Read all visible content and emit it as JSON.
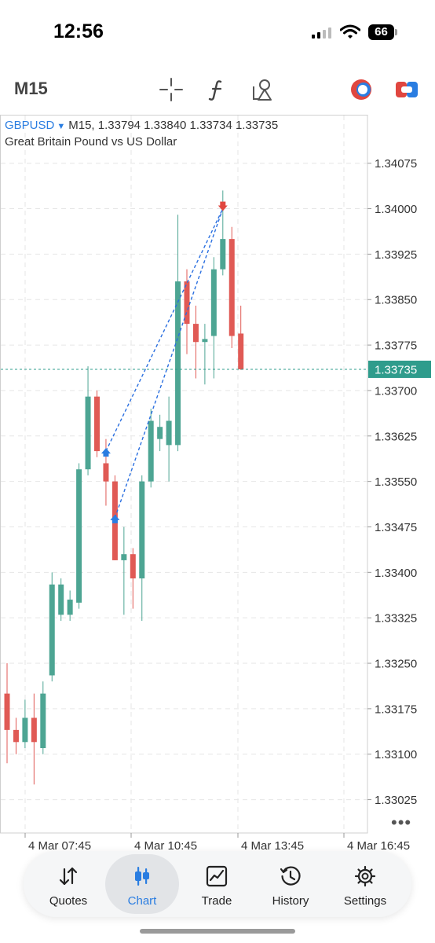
{
  "status_bar": {
    "time": "12:56",
    "battery": "66",
    "icons": [
      "signal-icon",
      "wifi-icon",
      "battery-icon"
    ]
  },
  "toolbar": {
    "timeframe": "M15",
    "icons": [
      "crosshair-icon",
      "indicator-icon",
      "objects-icon",
      "one-click-trading-icon",
      "depth-of-market-icon"
    ]
  },
  "chart": {
    "symbol": "GBPUSD",
    "timeframe": "M15,",
    "ohlc": "1.33794 1.33840 1.33734 1.33735",
    "description": "Great Britain Pound vs US Dollar",
    "current_price": "1.33735",
    "y_ticks": [
      "1.34075",
      "1.34000",
      "1.33925",
      "1.33850",
      "1.33775",
      "1.33700",
      "1.33625",
      "1.33550",
      "1.33475",
      "1.33400",
      "1.33325",
      "1.33250",
      "1.33175",
      "1.33100",
      "1.33025"
    ],
    "x_ticks": [
      "4 Mar 07:45",
      "4 Mar 10:45",
      "4 Mar 13:45",
      "4 Mar 16:45"
    ],
    "colors": {
      "bull": "#4da593",
      "bear": "#e05a55",
      "grid": "#e6e6e6",
      "price_line": "#2f9c8c",
      "buy_arrow": "#2a7de1",
      "sell_arrow": "#e0463f",
      "trade_line": "#2a6fe0"
    }
  },
  "chart_data": {
    "type": "candlestick",
    "symbol": "GBPUSD",
    "timeframe": "M15",
    "ylim": [
      1.3297,
      1.34155
    ],
    "y_ticks": [
      1.34075,
      1.34,
      1.33925,
      1.3385,
      1.33775,
      1.337,
      1.33625,
      1.3355,
      1.33475,
      1.334,
      1.33325,
      1.3325,
      1.33175,
      1.331,
      1.33025
    ],
    "x_ticks": [
      "4 Mar 07:45",
      "4 Mar 10:45",
      "4 Mar 13:45",
      "4 Mar 16:45"
    ],
    "last_price": 1.33735,
    "candles": [
      {
        "o": 1.332,
        "h": 1.3325,
        "l": 1.33085,
        "c": 1.3314
      },
      {
        "o": 1.3314,
        "h": 1.3316,
        "l": 1.331,
        "c": 1.3312
      },
      {
        "o": 1.3312,
        "h": 1.3319,
        "l": 1.3311,
        "c": 1.3316
      },
      {
        "o": 1.3316,
        "h": 1.332,
        "l": 1.3305,
        "c": 1.3312
      },
      {
        "o": 1.3311,
        "h": 1.3322,
        "l": 1.331,
        "c": 1.332
      },
      {
        "o": 1.3323,
        "h": 1.334,
        "l": 1.3322,
        "c": 1.3338
      },
      {
        "o": 1.3333,
        "h": 1.3339,
        "l": 1.3332,
        "c": 1.3338
      },
      {
        "o": 1.3333,
        "h": 1.3337,
        "l": 1.3332,
        "c": 1.33355
      },
      {
        "o": 1.3335,
        "h": 1.3358,
        "l": 1.3334,
        "c": 1.3357
      },
      {
        "o": 1.3357,
        "h": 1.3374,
        "l": 1.3356,
        "c": 1.3369
      },
      {
        "o": 1.3369,
        "h": 1.337,
        "l": 1.3359,
        "c": 1.336
      },
      {
        "o": 1.3358,
        "h": 1.3362,
        "l": 1.3351,
        "c": 1.3355
      },
      {
        "o": 1.3355,
        "h": 1.3356,
        "l": 1.3342,
        "c": 1.3342
      },
      {
        "o": 1.3342,
        "h": 1.33475,
        "l": 1.3333,
        "c": 1.3343
      },
      {
        "o": 1.3343,
        "h": 1.3344,
        "l": 1.3334,
        "c": 1.3339
      },
      {
        "o": 1.3339,
        "h": 1.3356,
        "l": 1.3332,
        "c": 1.3355
      },
      {
        "o": 1.3355,
        "h": 1.3367,
        "l": 1.3354,
        "c": 1.3365
      },
      {
        "o": 1.3362,
        "h": 1.3366,
        "l": 1.336,
        "c": 1.3364
      },
      {
        "o": 1.3361,
        "h": 1.3369,
        "l": 1.3355,
        "c": 1.3365
      },
      {
        "o": 1.3361,
        "h": 1.3399,
        "l": 1.336,
        "c": 1.3388
      },
      {
        "o": 1.3388,
        "h": 1.339,
        "l": 1.3376,
        "c": 1.3381
      },
      {
        "o": 1.3381,
        "h": 1.3384,
        "l": 1.3372,
        "c": 1.3378
      },
      {
        "o": 1.3378,
        "h": 1.3381,
        "l": 1.3371,
        "c": 1.33785
      },
      {
        "o": 1.3379,
        "h": 1.3392,
        "l": 1.3372,
        "c": 1.339
      },
      {
        "o": 1.339,
        "h": 1.3403,
        "l": 1.3389,
        "c": 1.3395
      },
      {
        "o": 1.3395,
        "h": 1.3397,
        "l": 1.3377,
        "c": 1.3379
      },
      {
        "o": 1.33794,
        "h": 1.3384,
        "l": 1.33734,
        "c": 1.33735
      }
    ],
    "trades": [
      {
        "type": "buy",
        "candle": 11,
        "price": 1.336,
        "close_candle": 24,
        "close_price": 1.34
      },
      {
        "type": "buy",
        "candle": 12,
        "price": 1.3349,
        "close_candle": 24,
        "close_price": 1.34
      }
    ]
  },
  "bottom_nav": {
    "items": [
      {
        "label": "Quotes",
        "icon": "quotes-icon",
        "active": false
      },
      {
        "label": "Chart",
        "icon": "chart-icon",
        "active": true
      },
      {
        "label": "Trade",
        "icon": "trade-icon",
        "active": false
      },
      {
        "label": "History",
        "icon": "history-icon",
        "active": false
      },
      {
        "label": "Settings",
        "icon": "settings-icon",
        "active": false
      }
    ]
  }
}
